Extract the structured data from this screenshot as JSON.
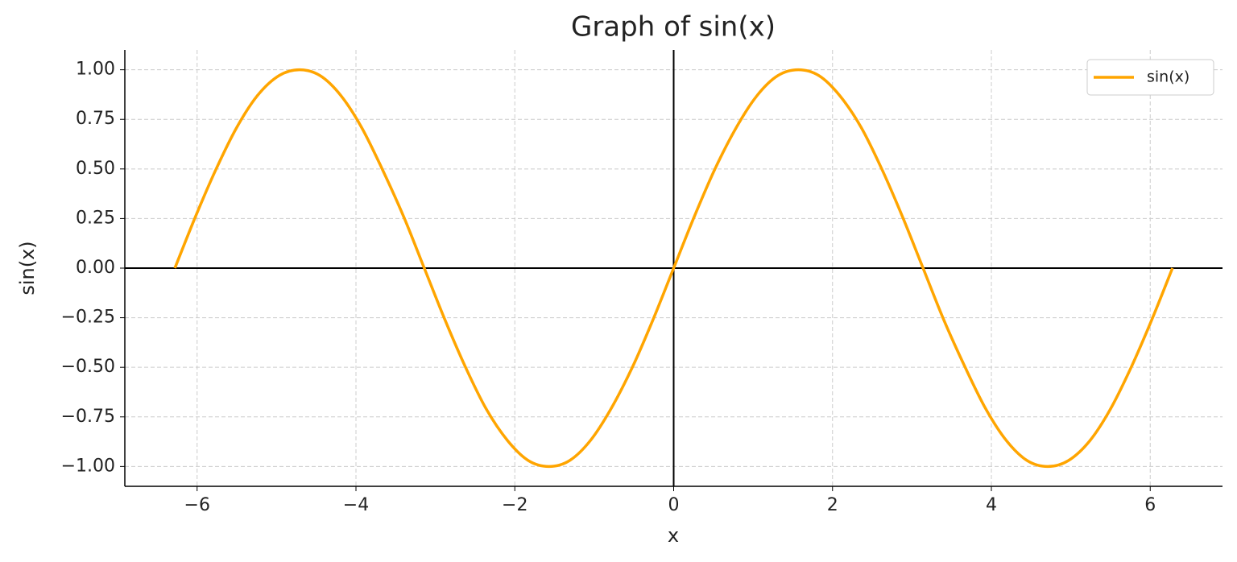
{
  "chart_data": {
    "type": "line",
    "title": "Graph of sin(x)",
    "x_label": "x",
    "y_label": "sin(x)",
    "x": [
      -6.28,
      -6.02,
      -5.76,
      -5.5,
      -5.24,
      -4.97,
      -4.71,
      -4.45,
      -4.19,
      -3.93,
      -3.67,
      -3.4,
      -3.14,
      -2.88,
      -2.62,
      -2.36,
      -2.09,
      -1.83,
      -1.57,
      -1.31,
      -1.05,
      -0.79,
      -0.52,
      -0.26,
      0,
      0.26,
      0.52,
      0.79,
      1.05,
      1.31,
      1.57,
      1.83,
      2.09,
      2.36,
      2.62,
      2.88,
      3.14,
      3.4,
      3.67,
      3.93,
      4.19,
      4.45,
      4.71,
      4.97,
      5.24,
      5.5,
      5.76,
      6.02,
      6.28
    ],
    "series": [
      {
        "name": "sin(x)",
        "color": "#ffa500",
        "values": [
          0,
          0.26,
          0.5,
          0.71,
          0.87,
          0.97,
          1,
          0.97,
          0.87,
          0.71,
          0.5,
          0.26,
          0,
          -0.26,
          -0.5,
          -0.71,
          -0.87,
          -0.97,
          -1,
          -0.97,
          -0.87,
          -0.71,
          -0.5,
          -0.26,
          0,
          0.26,
          0.5,
          0.71,
          0.87,
          0.97,
          1,
          0.97,
          0.87,
          0.71,
          0.5,
          0.26,
          0,
          -0.26,
          -0.5,
          -0.71,
          -0.87,
          -0.97,
          -1,
          -0.97,
          -0.87,
          -0.71,
          -0.5,
          -0.26,
          0
        ]
      }
    ],
    "xlim": [
      -6.91,
      6.91
    ],
    "xticks": [
      {
        "value": -6,
        "label": "−6"
      },
      {
        "value": -4,
        "label": "−4"
      },
      {
        "value": -2,
        "label": "−2"
      },
      0,
      2,
      4,
      6
    ],
    "ylim": [
      -1.1,
      1.1
    ],
    "yticks": [
      {
        "value": -1,
        "label": "−1.00"
      },
      {
        "value": -0.75,
        "label": "−0.75"
      },
      {
        "value": -0.5,
        "label": "−0.50"
      },
      {
        "value": -0.25,
        "label": "−0.25"
      },
      {
        "value": 0,
        "label": "0.00"
      },
      {
        "value": 0.25,
        "label": "0.25"
      },
      {
        "value": 0.5,
        "label": "0.50"
      },
      {
        "value": 0.75,
        "label": "0.75"
      },
      {
        "value": 1,
        "label": "1.00"
      }
    ],
    "grid": true,
    "zero_lines": true,
    "legend": "upper-right"
  }
}
